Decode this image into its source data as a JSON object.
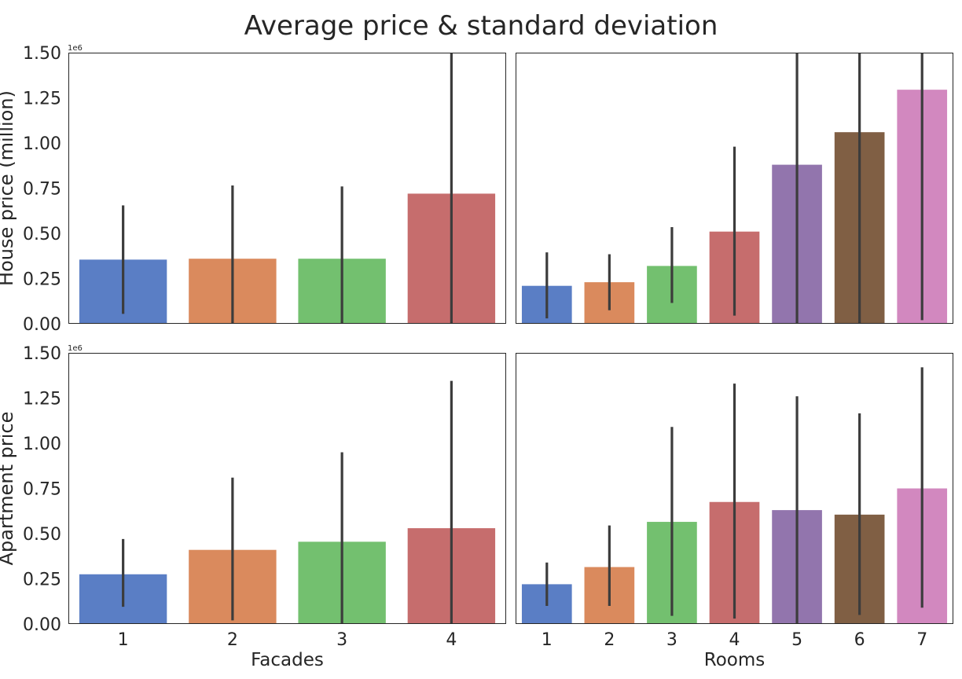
{
  "figure": {
    "title": "Average price & standard deviation"
  },
  "chart_data": [
    {
      "type": "bar",
      "panel": "top-left",
      "xlabel": "",
      "ylabel": "House price (million)",
      "ylim": [
        0,
        1.5
      ],
      "scale_label": "1e6",
      "yticks": [
        "0.00",
        "0.25",
        "0.50",
        "0.75",
        "1.00",
        "1.25",
        "1.50"
      ],
      "categories": [
        "1",
        "2",
        "3",
        "4"
      ],
      "values": [
        0.355,
        0.36,
        0.36,
        0.72
      ],
      "error_low": [
        0.055,
        0.0,
        0.0,
        0.0
      ],
      "error_high": [
        0.655,
        0.765,
        0.76,
        1.5
      ],
      "colors": [
        "#5a7ec5",
        "#da8a5d",
        "#73c06f",
        "#c66d6d"
      ]
    },
    {
      "type": "bar",
      "panel": "top-right",
      "xlabel": "",
      "ylabel": "",
      "ylim": [
        0,
        1.5
      ],
      "categories": [
        "1",
        "2",
        "3",
        "4",
        "5",
        "6",
        "7"
      ],
      "values": [
        0.21,
        0.23,
        0.32,
        0.51,
        0.88,
        1.06,
        1.295
      ],
      "error_low": [
        0.03,
        0.075,
        0.115,
        0.045,
        0.0,
        0.0,
        0.02
      ],
      "error_high": [
        0.395,
        0.385,
        0.535,
        0.98,
        1.5,
        1.5,
        1.5
      ],
      "colors": [
        "#5a7ec5",
        "#da8a5d",
        "#73c06f",
        "#c66d6d",
        "#9275ad",
        "#805f44",
        "#d288bf"
      ]
    },
    {
      "type": "bar",
      "panel": "bottom-left",
      "xlabel": "Facades",
      "ylabel": "Apartment price",
      "ylim": [
        0,
        1.5
      ],
      "scale_label": "1e6",
      "yticks": [
        "0.00",
        "0.25",
        "0.50",
        "0.75",
        "1.00",
        "1.25",
        "1.50"
      ],
      "categories": [
        "1",
        "2",
        "3",
        "4"
      ],
      "values": [
        0.275,
        0.41,
        0.455,
        0.53
      ],
      "error_low": [
        0.095,
        0.02,
        0.0,
        0.0
      ],
      "error_high": [
        0.47,
        0.81,
        0.95,
        1.345
      ],
      "colors": [
        "#5a7ec5",
        "#da8a5d",
        "#73c06f",
        "#c66d6d"
      ]
    },
    {
      "type": "bar",
      "panel": "bottom-right",
      "xlabel": "Rooms",
      "ylabel": "",
      "ylim": [
        0,
        1.5
      ],
      "categories": [
        "1",
        "2",
        "3",
        "4",
        "5",
        "6",
        "7"
      ],
      "values": [
        0.22,
        0.315,
        0.565,
        0.675,
        0.63,
        0.605,
        0.75
      ],
      "error_low": [
        0.1,
        0.1,
        0.045,
        0.03,
        0.0,
        0.05,
        0.09
      ],
      "error_high": [
        0.34,
        0.545,
        1.09,
        1.33,
        1.26,
        1.165,
        1.42
      ],
      "colors": [
        "#5a7ec5",
        "#da8a5d",
        "#73c06f",
        "#c66d6d",
        "#9275ad",
        "#805f44",
        "#d288bf"
      ]
    }
  ]
}
